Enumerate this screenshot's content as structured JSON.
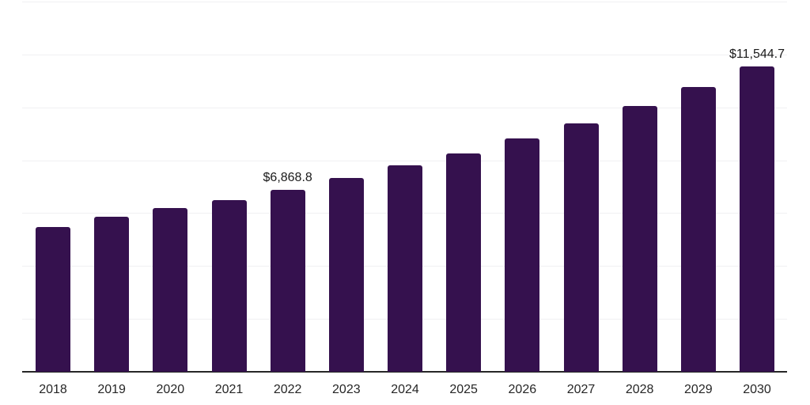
{
  "chart_data": {
    "type": "bar",
    "title": "",
    "xlabel": "",
    "ylabel": "",
    "categories": [
      "2018",
      "2019",
      "2020",
      "2021",
      "2022",
      "2023",
      "2024",
      "2025",
      "2026",
      "2027",
      "2028",
      "2029",
      "2030"
    ],
    "values": [
      5460,
      5870,
      6180,
      6500,
      6868.8,
      7340,
      7800,
      8260,
      8840,
      9390,
      10050,
      10780,
      11544.7
    ],
    "labeled_points": [
      {
        "category": "2022",
        "label": "$6,868.8"
      },
      {
        "category": "2030",
        "label": "$11,544.7"
      }
    ],
    "ylim": [
      0,
      14000
    ],
    "gridline_interval": 2000,
    "grid": true,
    "legend": false,
    "y_tick_labels_shown": false,
    "colors": {
      "bar": "#35114E",
      "axis_line": "#262626",
      "gridline": "#f0f0f2",
      "value_label": "#1a1a1a",
      "tick_label": "#262626"
    }
  }
}
